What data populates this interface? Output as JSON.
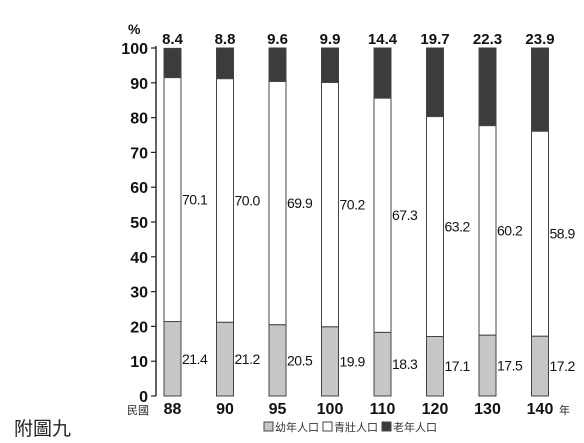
{
  "caption": "附圖九",
  "chart_data": {
    "type": "bar",
    "stacked": true,
    "orientation": "vertical",
    "y_unit_label": "%",
    "ylim": [
      0,
      100
    ],
    "yticks": [
      0,
      10,
      20,
      30,
      40,
      50,
      60,
      70,
      80,
      90,
      100
    ],
    "x_prefix": "民國",
    "x_suffix": "年",
    "categories": [
      "88",
      "90",
      "95",
      "100",
      "110",
      "120",
      "130",
      "140"
    ],
    "series": [
      {
        "name": "幼年人口",
        "color": "#c6c6c6",
        "values": [
          21.4,
          21.2,
          20.5,
          19.9,
          18.3,
          17.1,
          17.5,
          17.2
        ]
      },
      {
        "name": "青壯人口",
        "color": "#ffffff",
        "values": [
          70.1,
          70.0,
          69.9,
          70.2,
          67.3,
          63.2,
          60.2,
          58.9
        ]
      },
      {
        "name": "老年人口",
        "color": "#3c3c3c",
        "values": [
          8.4,
          8.8,
          9.6,
          9.9,
          14.4,
          19.7,
          22.3,
          23.9
        ]
      }
    ],
    "legend_position": "bottom-right"
  }
}
